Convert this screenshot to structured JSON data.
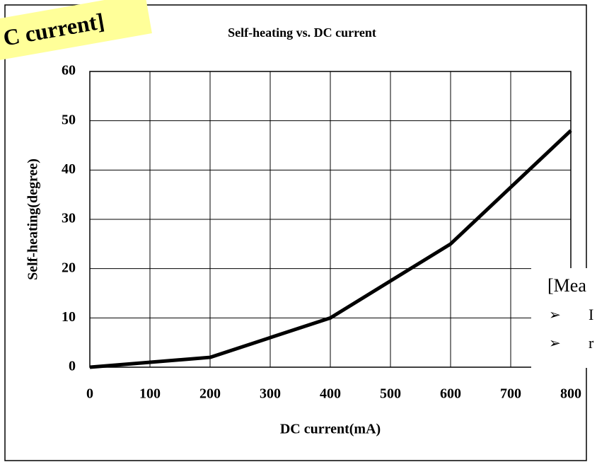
{
  "chart_data": {
    "type": "line",
    "title": "Self-heating vs. DC current",
    "banner": "C current]",
    "xlabel": "DC current(mA)",
    "ylabel": "Self-heating(degree)",
    "x": [
      0,
      200,
      400,
      600,
      800
    ],
    "series": [
      {
        "name": "Self-heating",
        "color": "#000000",
        "values": [
          0,
          2,
          10,
          25,
          48
        ]
      }
    ],
    "xlim": [
      0,
      800
    ],
    "xticks": [
      0,
      100,
      200,
      300,
      400,
      500,
      600,
      700,
      800
    ],
    "ylim": [
      0,
      60
    ],
    "yticks": [
      0,
      10,
      20,
      30,
      40,
      50,
      60
    ],
    "grid": true,
    "notes": {
      "heading": "[Mea",
      "bullets": [
        {
          "marker": "➢",
          "text": "I"
        },
        {
          "marker": "➢",
          "text": "r"
        }
      ]
    }
  }
}
